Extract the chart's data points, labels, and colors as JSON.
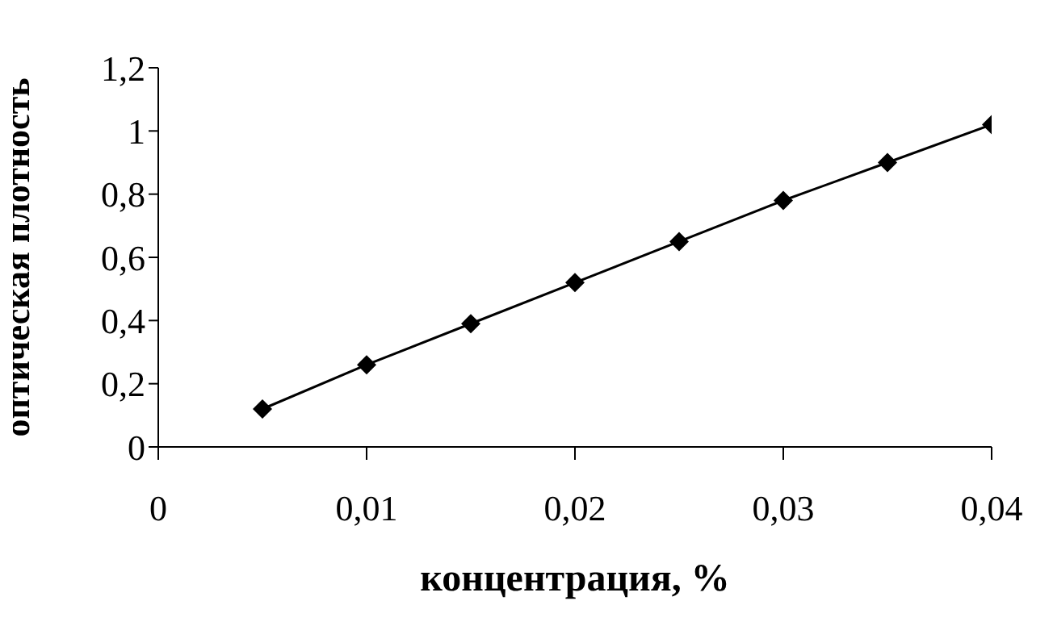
{
  "chart_data": {
    "type": "line",
    "xlabel": "концентрация, %",
    "ylabel": "оптическая плотность",
    "x": [
      0.005,
      0.01,
      0.015,
      0.02,
      0.025,
      0.03,
      0.035,
      0.04
    ],
    "series": [
      {
        "color": "#000000",
        "values": [
          0.12,
          0.26,
          0.39,
          0.52,
          0.65,
          0.78,
          0.9,
          1.02
        ]
      }
    ],
    "xlim": [
      0,
      0.04
    ],
    "xticks": [
      0,
      {
        "value": 0.01,
        "label": "0,01"
      },
      {
        "value": 0.02,
        "label": "0,02"
      },
      {
        "value": 0.03,
        "label": "0,03"
      },
      {
        "value": 0.04,
        "label": "0,04"
      }
    ],
    "ylim": [
      0,
      1.2
    ],
    "yticks": [
      0,
      {
        "value": 0.2,
        "label": "0,2"
      },
      {
        "value": 0.4,
        "label": "0,4"
      },
      {
        "value": 0.6,
        "label": "0,6"
      },
      {
        "value": 0.8,
        "label": "0,8"
      },
      1,
      {
        "value": 1.2,
        "label": "1,2"
      }
    ],
    "marker": "diamond",
    "line_style": "solid"
  }
}
